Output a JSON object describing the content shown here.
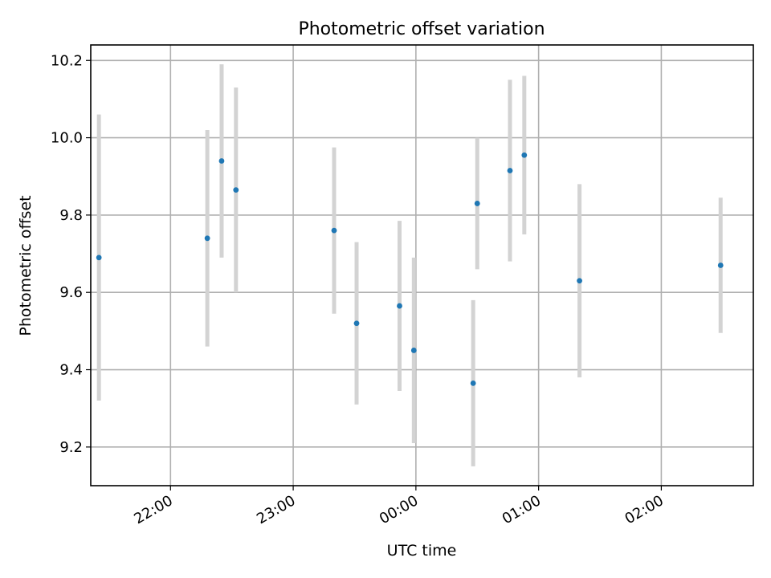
{
  "chart_data": {
    "type": "scatter",
    "title": "Photometric offset variation",
    "xlabel": "UTC time",
    "ylabel": "Photometric offset",
    "x_ticks": [
      "22:00",
      "23:00",
      "00:00",
      "01:00",
      "02:00"
    ],
    "y_ticks": [
      "9.2",
      "9.4",
      "9.6",
      "9.8",
      "10.0",
      "10.2"
    ],
    "ylim": [
      9.1,
      10.24
    ],
    "xlim": [
      "21:21",
      "02:45"
    ],
    "grid": true,
    "errorbar_color": "#d3d3d3",
    "marker_color": "#1f77b4",
    "series": [
      {
        "points": [
          {
            "time": "21:25",
            "y": 9.69,
            "err": 0.37
          },
          {
            "time": "22:18",
            "y": 9.74,
            "err": 0.28
          },
          {
            "time": "22:25",
            "y": 9.94,
            "err": 0.25
          },
          {
            "time": "22:32",
            "y": 9.865,
            "err": 0.265
          },
          {
            "time": "23:20",
            "y": 9.76,
            "err": 0.215
          },
          {
            "time": "23:31",
            "y": 9.52,
            "err": 0.21
          },
          {
            "time": "23:52",
            "y": 9.565,
            "err": 0.22
          },
          {
            "time": "23:59",
            "y": 9.45,
            "err": 0.24
          },
          {
            "time": "00:28",
            "y": 9.365,
            "err": 0.215
          },
          {
            "time": "00:30",
            "y": 9.83,
            "err": 0.17
          },
          {
            "time": "00:46",
            "y": 9.915,
            "err": 0.235
          },
          {
            "time": "00:53",
            "y": 9.955,
            "err": 0.205
          },
          {
            "time": "01:20",
            "y": 9.63,
            "err": 0.25
          },
          {
            "time": "02:29",
            "y": 9.67,
            "err": 0.175
          }
        ]
      }
    ]
  }
}
